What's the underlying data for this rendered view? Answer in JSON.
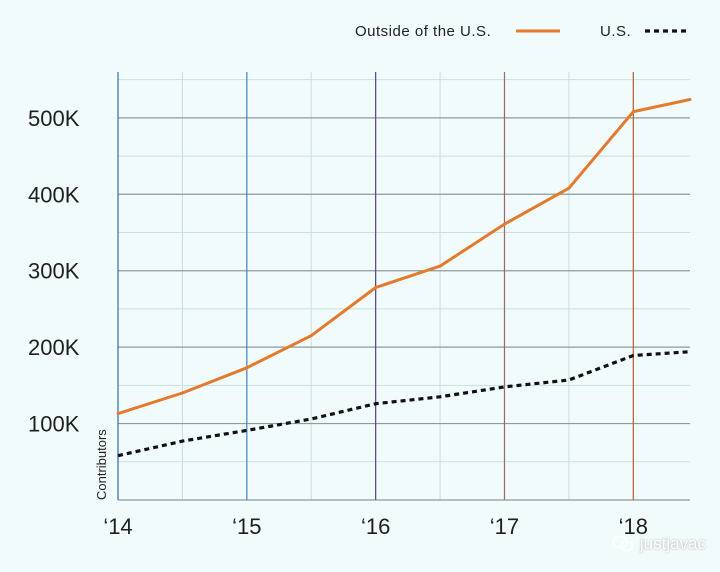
{
  "colors": {
    "background": "#f2fbfb",
    "grid": "#c9dede",
    "grid_major": "#8f9a9a",
    "outside_us": "#e47a2e",
    "us": "#111111",
    "year_lines": [
      "#2b6fb0",
      "#3f86c4",
      "#5a3f8c",
      "#9a6a6a",
      "#b8602c"
    ]
  },
  "watermark": {
    "text": "justjavac",
    "icon": "wechat-icon"
  },
  "chart_data": {
    "type": "line",
    "title": "",
    "ylabel": "Contributors",
    "xlabel": "",
    "xlim": [
      2014,
      2018.44
    ],
    "ylim": [
      0,
      560
    ],
    "x_ticks": [
      2014,
      2015,
      2016,
      2017,
      2018
    ],
    "x_tick_labels": [
      "‘14",
      "‘15",
      "‘16",
      "‘17",
      "‘18"
    ],
    "y_ticks": [
      100,
      200,
      300,
      400,
      500
    ],
    "y_tick_labels": [
      "100K",
      "200K",
      "300K",
      "400K",
      "500K"
    ],
    "y_unit": "thousands",
    "legend": {
      "position": "top-right"
    },
    "series": [
      {
        "name": "Outside of the U.S.",
        "style": "solid",
        "x": [
          2014,
          2014.5,
          2015,
          2015.5,
          2016,
          2016.5,
          2017,
          2017.5,
          2018,
          2018.44
        ],
        "values": [
          113,
          140,
          173,
          215,
          278,
          306,
          361,
          408,
          508,
          524
        ]
      },
      {
        "name": "U.S.",
        "style": "dotted",
        "x": [
          2014,
          2014.5,
          2015,
          2015.5,
          2016,
          2016.5,
          2017,
          2017.5,
          2018,
          2018.44
        ],
        "values": [
          58,
          77,
          91,
          106,
          126,
          135,
          148,
          157,
          189,
          194
        ]
      }
    ]
  }
}
